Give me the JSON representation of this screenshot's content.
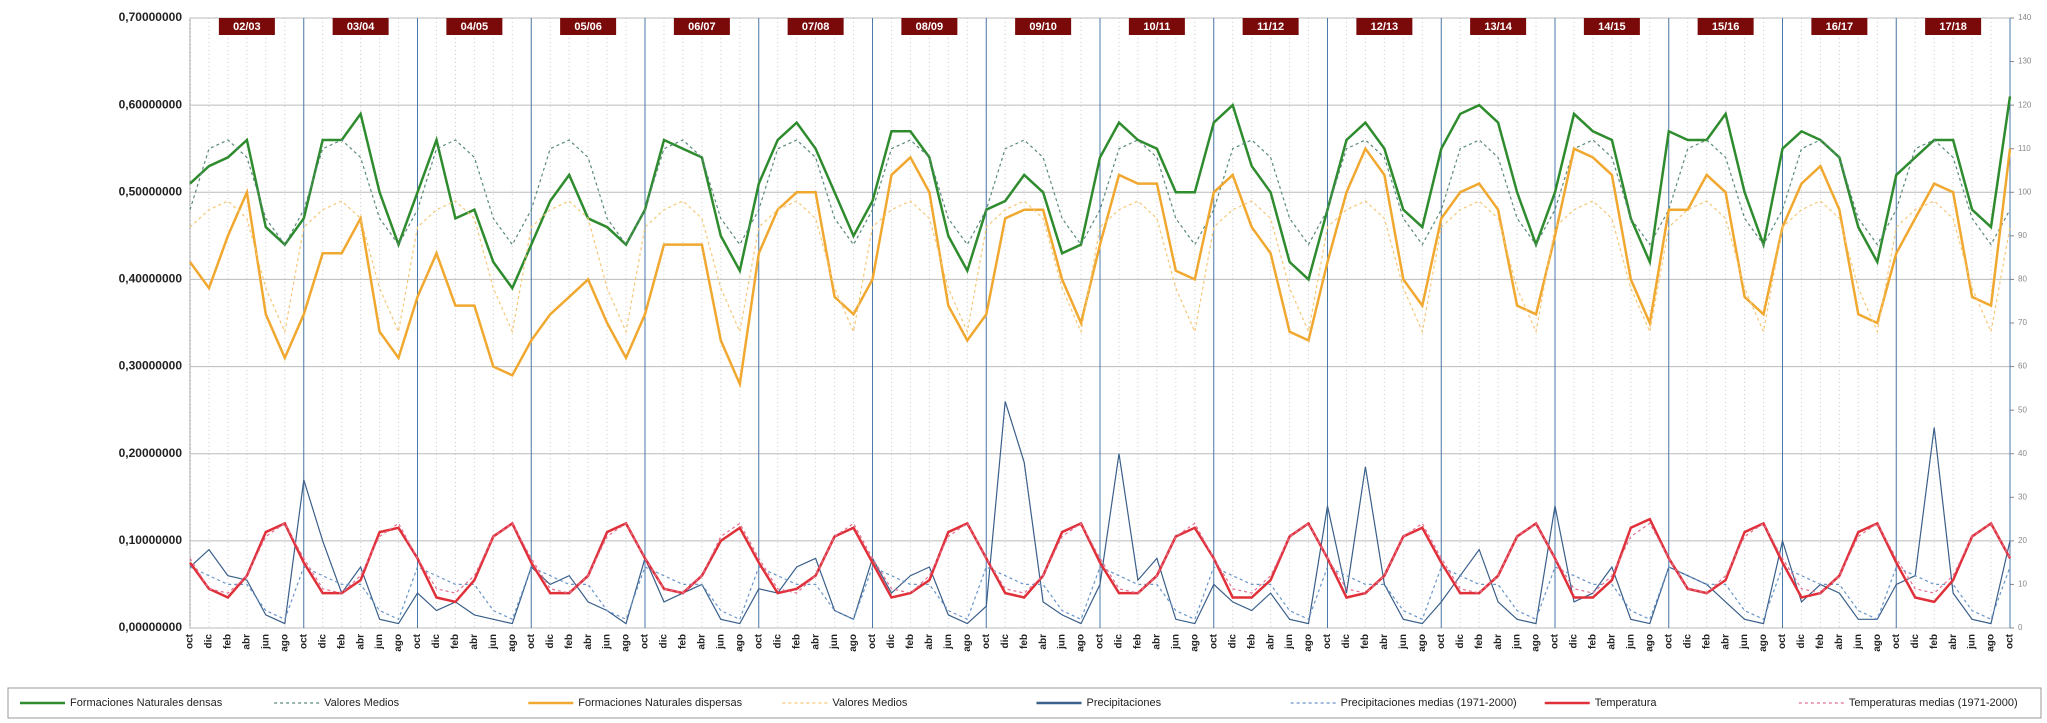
{
  "chart_data": {
    "type": "line",
    "categories": [
      "oct",
      "dic",
      "feb",
      "abr",
      "jun",
      "ago",
      "oct",
      "dic",
      "feb",
      "abr",
      "jun",
      "ago",
      "oct",
      "dic",
      "feb",
      "abr",
      "jun",
      "ago",
      "oct",
      "dic",
      "feb",
      "abr",
      "jun",
      "ago",
      "oct",
      "dic",
      "feb",
      "abr",
      "jun",
      "ago",
      "oct",
      "dic",
      "feb",
      "abr",
      "jun",
      "ago",
      "oct",
      "dic",
      "feb",
      "abr",
      "jun",
      "ago",
      "oct",
      "dic",
      "feb",
      "abr",
      "jun",
      "ago",
      "oct",
      "dic",
      "feb",
      "abr",
      "jun",
      "ago",
      "oct",
      "dic",
      "feb",
      "abr",
      "jun",
      "ago",
      "oct",
      "dic",
      "feb",
      "abr",
      "jun",
      "ago",
      "oct",
      "dic",
      "feb",
      "abr",
      "jun",
      "ago",
      "oct",
      "dic",
      "feb",
      "abr",
      "jun",
      "ago",
      "oct",
      "dic",
      "feb",
      "abr",
      "jun",
      "ago",
      "oct",
      "dic",
      "feb",
      "abr",
      "jun",
      "ago",
      "oct",
      "dic",
      "feb",
      "abr",
      "jun",
      "ago",
      "oct"
    ],
    "seasons": [
      "02/03",
      "03/04",
      "04/05",
      "05/06",
      "06/07",
      "07/08",
      "08/09",
      "09/10",
      "10/11",
      "11/12",
      "12/13",
      "13/14",
      "14/15",
      "15/16",
      "16/17",
      "17/18"
    ],
    "ylim": [
      0,
      0.7
    ],
    "yticks": [
      {
        "value": 0,
        "label": "0,00000000"
      },
      {
        "value": 0.1,
        "label": "0,10000000"
      },
      {
        "value": 0.2,
        "label": "0,20000000"
      },
      {
        "value": 0.3,
        "label": "0,30000000"
      },
      {
        "value": 0.4,
        "label": "0,40000000"
      },
      {
        "value": 0.5,
        "label": "0,50000000"
      },
      {
        "value": 0.6,
        "label": "0,60000000"
      },
      {
        "value": 0.7,
        "label": "0,70000000"
      }
    ],
    "y2lim": [
      0,
      140
    ],
    "y2ticks": [
      0,
      10,
      20,
      30,
      40,
      50,
      60,
      70,
      80,
      90,
      100,
      110,
      120,
      130,
      140
    ],
    "grid": true,
    "legend": "bottom",
    "series": [
      {
        "name": "Formaciones Naturales densas",
        "color": "#2e8b2e",
        "dashed": false,
        "values": [
          0.51,
          0.53,
          0.54,
          0.56,
          0.46,
          0.44,
          0.47,
          0.56,
          0.56,
          0.59,
          0.5,
          0.44,
          0.5,
          0.56,
          0.47,
          0.48,
          0.42,
          0.39,
          0.44,
          0.49,
          0.52,
          0.47,
          0.46,
          0.44,
          0.48,
          0.56,
          0.55,
          0.54,
          0.45,
          0.41,
          0.51,
          0.56,
          0.58,
          0.55,
          0.5,
          0.45,
          0.49,
          0.57,
          0.57,
          0.54,
          0.45,
          0.41,
          0.48,
          0.49,
          0.52,
          0.5,
          0.43,
          0.44,
          0.54,
          0.58,
          0.56,
          0.55,
          0.5,
          0.5,
          0.58,
          0.6,
          0.53,
          0.5,
          0.42,
          0.4,
          0.48,
          0.56,
          0.58,
          0.55,
          0.48,
          0.46,
          0.55,
          0.59,
          0.6,
          0.58,
          0.5,
          0.44,
          0.5,
          0.59,
          0.57,
          0.56,
          0.47,
          0.42,
          0.57,
          0.56,
          0.56,
          0.59,
          0.5,
          0.44,
          0.55,
          0.57,
          0.56,
          0.54,
          0.46,
          0.42,
          0.52,
          0.54,
          0.56,
          0.56,
          0.48,
          0.46,
          0.61
        ]
      },
      {
        "name": "Valores Medios",
        "color": "#5a8a7a",
        "dashed": true,
        "values": [
          0.48,
          0.55,
          0.56,
          0.54,
          0.47,
          0.44,
          0.48,
          0.55,
          0.56,
          0.54,
          0.47,
          0.44,
          0.48,
          0.55,
          0.56,
          0.54,
          0.47,
          0.44,
          0.48,
          0.55,
          0.56,
          0.54,
          0.47,
          0.44,
          0.48,
          0.55,
          0.56,
          0.54,
          0.47,
          0.44,
          0.48,
          0.55,
          0.56,
          0.54,
          0.47,
          0.44,
          0.48,
          0.55,
          0.56,
          0.54,
          0.47,
          0.44,
          0.48,
          0.55,
          0.56,
          0.54,
          0.47,
          0.44,
          0.48,
          0.55,
          0.56,
          0.54,
          0.47,
          0.44,
          0.48,
          0.55,
          0.56,
          0.54,
          0.47,
          0.44,
          0.48,
          0.55,
          0.56,
          0.54,
          0.47,
          0.44,
          0.48,
          0.55,
          0.56,
          0.54,
          0.47,
          0.44,
          0.48,
          0.55,
          0.56,
          0.54,
          0.47,
          0.44,
          0.48,
          0.55,
          0.56,
          0.54,
          0.47,
          0.44,
          0.48,
          0.55,
          0.56,
          0.54,
          0.47,
          0.44,
          0.48,
          0.55,
          0.56,
          0.54,
          0.47,
          0.44,
          0.48
        ]
      },
      {
        "name": "Formaciones Naturales dispersas",
        "color": "#f0a830",
        "dashed": false,
        "values": [
          0.42,
          0.39,
          0.45,
          0.5,
          0.36,
          0.31,
          0.36,
          0.43,
          0.43,
          0.47,
          0.34,
          0.31,
          0.38,
          0.43,
          0.37,
          0.37,
          0.3,
          0.29,
          0.33,
          0.36,
          0.38,
          0.4,
          0.35,
          0.31,
          0.36,
          0.44,
          0.44,
          0.44,
          0.33,
          0.28,
          0.43,
          0.48,
          0.5,
          0.5,
          0.38,
          0.36,
          0.4,
          0.52,
          0.54,
          0.5,
          0.37,
          0.33,
          0.36,
          0.47,
          0.48,
          0.48,
          0.4,
          0.35,
          0.44,
          0.52,
          0.51,
          0.51,
          0.41,
          0.4,
          0.5,
          0.52,
          0.46,
          0.43,
          0.34,
          0.33,
          0.42,
          0.5,
          0.55,
          0.52,
          0.4,
          0.37,
          0.47,
          0.5,
          0.51,
          0.48,
          0.37,
          0.36,
          0.45,
          0.55,
          0.54,
          0.52,
          0.4,
          0.35,
          0.48,
          0.48,
          0.52,
          0.5,
          0.38,
          0.36,
          0.46,
          0.51,
          0.53,
          0.48,
          0.36,
          0.35,
          0.43,
          0.47,
          0.51,
          0.5,
          0.38,
          0.37,
          0.55
        ]
      },
      {
        "name": "Valores Medios",
        "color": "#f5c878",
        "dashed": true,
        "values": [
          0.46,
          0.48,
          0.49,
          0.47,
          0.39,
          0.34,
          0.46,
          0.48,
          0.49,
          0.47,
          0.39,
          0.34,
          0.46,
          0.48,
          0.49,
          0.47,
          0.39,
          0.34,
          0.46,
          0.48,
          0.49,
          0.47,
          0.39,
          0.34,
          0.46,
          0.48,
          0.49,
          0.47,
          0.39,
          0.34,
          0.46,
          0.48,
          0.49,
          0.47,
          0.39,
          0.34,
          0.46,
          0.48,
          0.49,
          0.47,
          0.39,
          0.34,
          0.46,
          0.48,
          0.49,
          0.47,
          0.39,
          0.34,
          0.46,
          0.48,
          0.49,
          0.47,
          0.39,
          0.34,
          0.46,
          0.48,
          0.49,
          0.47,
          0.39,
          0.34,
          0.46,
          0.48,
          0.49,
          0.47,
          0.39,
          0.34,
          0.46,
          0.48,
          0.49,
          0.47,
          0.39,
          0.34,
          0.46,
          0.48,
          0.49,
          0.47,
          0.39,
          0.34,
          0.46,
          0.48,
          0.49,
          0.47,
          0.39,
          0.34,
          0.46,
          0.48,
          0.49,
          0.47,
          0.39,
          0.34,
          0.46,
          0.48,
          0.49,
          0.47,
          0.39,
          0.34,
          0.46
        ]
      },
      {
        "name": "Precipitaciones",
        "color": "#3a5f8a",
        "dashed": false,
        "axis": "y2",
        "values": [
          14,
          18,
          12,
          11,
          3,
          1,
          34,
          20,
          8,
          14,
          2,
          1,
          8,
          4,
          6,
          3,
          2,
          1,
          14,
          10,
          12,
          6,
          4,
          1,
          16,
          6,
          8,
          10,
          2,
          1,
          9,
          8,
          14,
          16,
          4,
          2,
          16,
          8,
          12,
          14,
          3,
          1,
          5,
          52,
          38,
          6,
          3,
          1,
          10,
          40,
          11,
          16,
          2,
          1,
          10,
          6,
          4,
          8,
          2,
          1,
          28,
          8,
          37,
          10,
          2,
          1,
          6,
          12,
          18,
          6,
          2,
          1,
          28,
          6,
          8,
          14,
          2,
          1,
          14,
          12,
          10,
          6,
          2,
          1,
          20,
          6,
          10,
          8,
          2,
          2,
          10,
          12,
          46,
          8,
          2,
          1,
          20
        ]
      },
      {
        "name": "Precipitaciones medias (1971-2000)",
        "color": "#6a95c8",
        "dashed": true,
        "axis": "y2",
        "values": [
          14,
          12,
          10,
          10,
          4,
          2,
          14,
          12,
          10,
          10,
          4,
          2,
          14,
          12,
          10,
          10,
          4,
          2,
          14,
          12,
          10,
          10,
          4,
          2,
          14,
          12,
          10,
          10,
          4,
          2,
          14,
          12,
          10,
          10,
          4,
          2,
          14,
          12,
          10,
          10,
          4,
          2,
          14,
          12,
          10,
          10,
          4,
          2,
          14,
          12,
          10,
          10,
          4,
          2,
          14,
          12,
          10,
          10,
          4,
          2,
          14,
          12,
          10,
          10,
          4,
          2,
          14,
          12,
          10,
          10,
          4,
          2,
          14,
          12,
          10,
          10,
          4,
          2,
          14,
          12,
          10,
          10,
          4,
          2,
          14,
          12,
          10,
          10,
          4,
          2,
          14,
          12,
          10,
          10,
          4,
          2,
          14
        ]
      },
      {
        "name": "Temperatura",
        "color": "#e0303a",
        "dashed": false,
        "axis": "y2",
        "values": [
          15,
          9,
          7,
          12,
          22,
          24,
          15,
          8,
          8,
          11,
          22,
          23,
          16,
          7,
          6,
          11,
          21,
          24,
          15,
          8,
          8,
          12,
          22,
          24,
          16,
          9,
          8,
          12,
          20,
          23,
          15,
          8,
          9,
          12,
          21,
          23,
          15,
          7,
          8,
          11,
          22,
          24,
          16,
          8,
          7,
          12,
          22,
          24,
          15,
          8,
          8,
          12,
          21,
          23,
          16,
          7,
          7,
          11,
          21,
          24,
          16,
          7,
          8,
          12,
          21,
          23,
          15,
          8,
          8,
          12,
          21,
          24,
          16,
          7,
          7,
          11,
          23,
          25,
          16,
          9,
          8,
          11,
          22,
          24,
          15,
          7,
          8,
          12,
          22,
          24,
          15,
          7,
          6,
          11,
          21,
          24,
          16
        ]
      },
      {
        "name": "Temperaturas medias (1971-2000)",
        "color": "#e07090",
        "dashed": true,
        "axis": "y2",
        "values": [
          16,
          9,
          8,
          12,
          21,
          24,
          16,
          9,
          8,
          12,
          21,
          24,
          16,
          9,
          8,
          12,
          21,
          24,
          16,
          9,
          8,
          12,
          21,
          24,
          16,
          9,
          8,
          12,
          21,
          24,
          16,
          9,
          8,
          12,
          21,
          24,
          16,
          9,
          8,
          12,
          21,
          24,
          16,
          9,
          8,
          12,
          21,
          24,
          16,
          9,
          8,
          12,
          21,
          24,
          16,
          9,
          8,
          12,
          21,
          24,
          16,
          9,
          8,
          12,
          21,
          24,
          16,
          9,
          8,
          12,
          21,
          24,
          16,
          9,
          8,
          12,
          21,
          24,
          16,
          9,
          8,
          12,
          21,
          24,
          16,
          9,
          8,
          12,
          21,
          24,
          16,
          9,
          8,
          12,
          21,
          24,
          16
        ]
      }
    ]
  }
}
